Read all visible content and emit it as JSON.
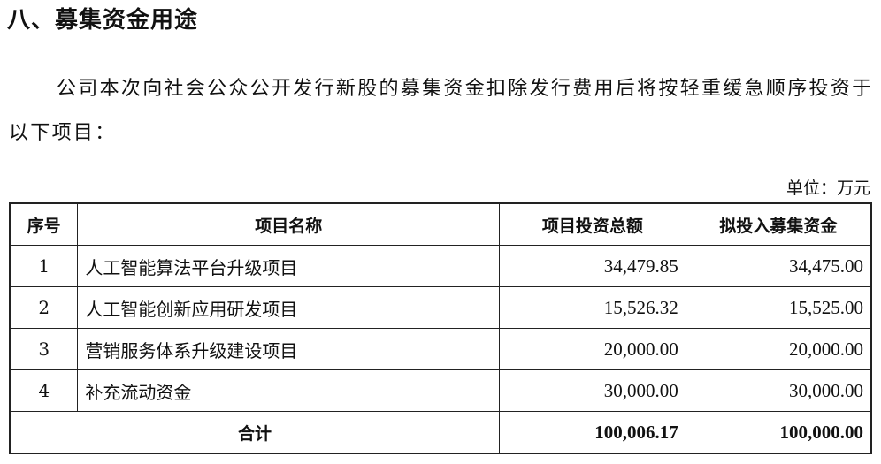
{
  "heading": "八、募集资金用途",
  "paragraph": "公司本次向社会公众公开发行新股的募集资金扣除发行费用后将按轻重缓急顺序投资于以下项目：",
  "unit": "单位：万元",
  "table": {
    "headers": [
      "序号",
      "项目名称",
      "项目投资总额",
      "拟投入募集资金"
    ],
    "rows": [
      {
        "no": "1",
        "name": "人工智能算法平台升级项目",
        "total": "34,479.85",
        "raised": "34,475.00"
      },
      {
        "no": "2",
        "name": "人工智能创新应用研发项目",
        "total": "15,526.32",
        "raised": "15,525.00"
      },
      {
        "no": "3",
        "name": "营销服务体系升级建设项目",
        "total": "20,000.00",
        "raised": "20,000.00"
      },
      {
        "no": "4",
        "name": "补充流动资金",
        "total": "30,000.00",
        "raised": "30,000.00"
      }
    ],
    "total": {
      "label": "合计",
      "total": "100,006.17",
      "raised": "100,000.00"
    }
  }
}
